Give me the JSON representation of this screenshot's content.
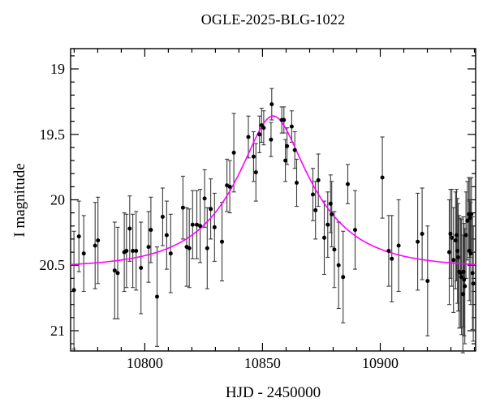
{
  "background": "#ffffff",
  "chart_data": {
    "type": "scatter",
    "title": "OGLE-2025-BLG-1022",
    "xlabel": "HJD - 2450000",
    "ylabel": "I magnitude",
    "xlim": [
      10768.5,
      10940.5
    ],
    "ylim": [
      18.845,
      21.155
    ],
    "y_axis_inverted_magnitude": true,
    "grid": false,
    "x_major_ticks": [
      10800,
      10850,
      10900
    ],
    "x_minor_step": 10,
    "y_major_ticks": [
      19,
      19.5,
      20,
      20.5,
      21
    ],
    "y_minor_step": 0.1,
    "point_color": "#000000",
    "errorbar_color": "#3a3a3a",
    "curve_color": "#ff00ff",
    "model": {
      "type": "paczynski",
      "I0": 20.52,
      "t0": 10854.5,
      "tE": 32,
      "u0": 0.36
    },
    "points": [
      [
        10769.9,
        20.69,
        0.45
      ],
      [
        10772.0,
        20.28,
        0.27
      ],
      [
        10774.1,
        20.41,
        0.29
      ],
      [
        10778.9,
        20.35,
        0.33
      ],
      [
        10780.1,
        20.31,
        0.33
      ],
      [
        10787.2,
        20.54,
        0.37
      ],
      [
        10788.5,
        20.56,
        0.35
      ],
      [
        10791.3,
        20.4,
        0.3
      ],
      [
        10792.2,
        20.39,
        0.28
      ],
      [
        10793.6,
        20.22,
        0.25
      ],
      [
        10794.9,
        20.39,
        0.28
      ],
      [
        10796.3,
        20.39,
        0.3
      ],
      [
        10798.4,
        20.52,
        0.35
      ],
      [
        10801.6,
        20.36,
        0.27
      ],
      [
        10802.6,
        20.23,
        0.25
      ],
      [
        10805.2,
        20.74,
        0.38
      ],
      [
        10807.6,
        20.13,
        0.22
      ],
      [
        10809.3,
        20.27,
        0.26
      ],
      [
        10811.0,
        20.41,
        0.3
      ],
      [
        10816.2,
        20.06,
        0.24
      ],
      [
        10817.8,
        20.36,
        0.3
      ],
      [
        10818.9,
        20.37,
        0.3
      ],
      [
        10820.3,
        20.19,
        0.26
      ],
      [
        10822.1,
        20.19,
        0.26
      ],
      [
        10823.5,
        20.2,
        0.28
      ],
      [
        10825.4,
        19.99,
        0.22
      ],
      [
        10826.5,
        20.37,
        0.31
      ],
      [
        10828.0,
        20.07,
        0.23
      ],
      [
        10829.6,
        20.21,
        0.26
      ],
      [
        10832.8,
        20.32,
        0.3
      ],
      [
        10834.9,
        19.89,
        0.2
      ],
      [
        10836.1,
        19.9,
        0.2
      ],
      [
        10837.8,
        19.64,
        0.3
      ],
      [
        10844.0,
        19.52,
        0.16
      ],
      [
        10846.2,
        19.67,
        0.19
      ],
      [
        10847.2,
        19.79,
        0.22
      ],
      [
        10848.7,
        19.5,
        0.14
      ],
      [
        10849.6,
        19.43,
        0.13
      ],
      [
        10850.5,
        19.45,
        0.13
      ],
      [
        10853.6,
        19.54,
        0.13
      ],
      [
        10853.9,
        19.27,
        0.12
      ],
      [
        10858.2,
        19.39,
        0.1
      ],
      [
        10859.1,
        19.39,
        0.1
      ],
      [
        10859.7,
        19.7,
        0.16
      ],
      [
        10860.4,
        19.59,
        0.14
      ],
      [
        10862.4,
        19.44,
        0.12
      ],
      [
        10863.7,
        19.62,
        0.14
      ],
      [
        10864.5,
        19.87,
        0.18
      ],
      [
        10871.4,
        19.96,
        0.2
      ],
      [
        10872.5,
        20.08,
        0.22
      ],
      [
        10873.7,
        19.85,
        0.2
      ],
      [
        10876.2,
        20.29,
        0.28
      ],
      [
        10877.7,
        20.19,
        0.25
      ],
      [
        10878.9,
        20.03,
        0.22
      ],
      [
        10879.4,
        20.11,
        0.25
      ],
      [
        10880.5,
        20.38,
        0.29
      ],
      [
        10882.3,
        20.5,
        0.33
      ],
      [
        10884.2,
        20.59,
        0.35
      ],
      [
        10886.2,
        19.88,
        0.15
      ],
      [
        10889.3,
        20.23,
        0.3
      ],
      [
        10900.9,
        19.83,
        0.31
      ],
      [
        10903.6,
        20.39,
        0.27
      ],
      [
        10904.9,
        20.45,
        0.33
      ],
      [
        10907.8,
        20.35,
        0.35
      ],
      [
        10915.9,
        20.32,
        0.37
      ],
      [
        10917.8,
        20.26,
        0.35
      ],
      [
        10920.1,
        20.62,
        0.42
      ],
      [
        10929.3,
        20.4,
        0.4
      ],
      [
        10929.8,
        20.26,
        0.34
      ],
      [
        10930.4,
        20.29,
        0.37
      ],
      [
        10931.1,
        20.46,
        0.4
      ],
      [
        10932.0,
        20.31,
        0.37
      ],
      [
        10932.4,
        20.27,
        0.35
      ],
      [
        10932.8,
        20.39,
        0.4
      ],
      [
        10933.1,
        20.44,
        0.41
      ],
      [
        10933.5,
        20.55,
        0.43
      ],
      [
        10934.1,
        20.56,
        0.42
      ],
      [
        10934.5,
        20.59,
        0.44
      ],
      [
        10935.1,
        20.72,
        0.45
      ],
      [
        10935.3,
        20.55,
        0.42
      ],
      [
        10935.6,
        20.61,
        0.43
      ],
      [
        10935.9,
        20.66,
        0.44
      ],
      [
        10936.4,
        20.27,
        0.33
      ],
      [
        10937.0,
        20.16,
        0.3
      ],
      [
        10937.6,
        20.11,
        0.28
      ],
      [
        10937.8,
        20.39,
        0.38
      ],
      [
        10938.1,
        20.14,
        0.3
      ],
      [
        10938.4,
        20.41,
        0.39
      ],
      [
        10938.7,
        20.11,
        0.28
      ],
      [
        10939.2,
        20.56,
        0.43
      ],
      [
        10939.5,
        20.64,
        0.44
      ]
    ]
  }
}
